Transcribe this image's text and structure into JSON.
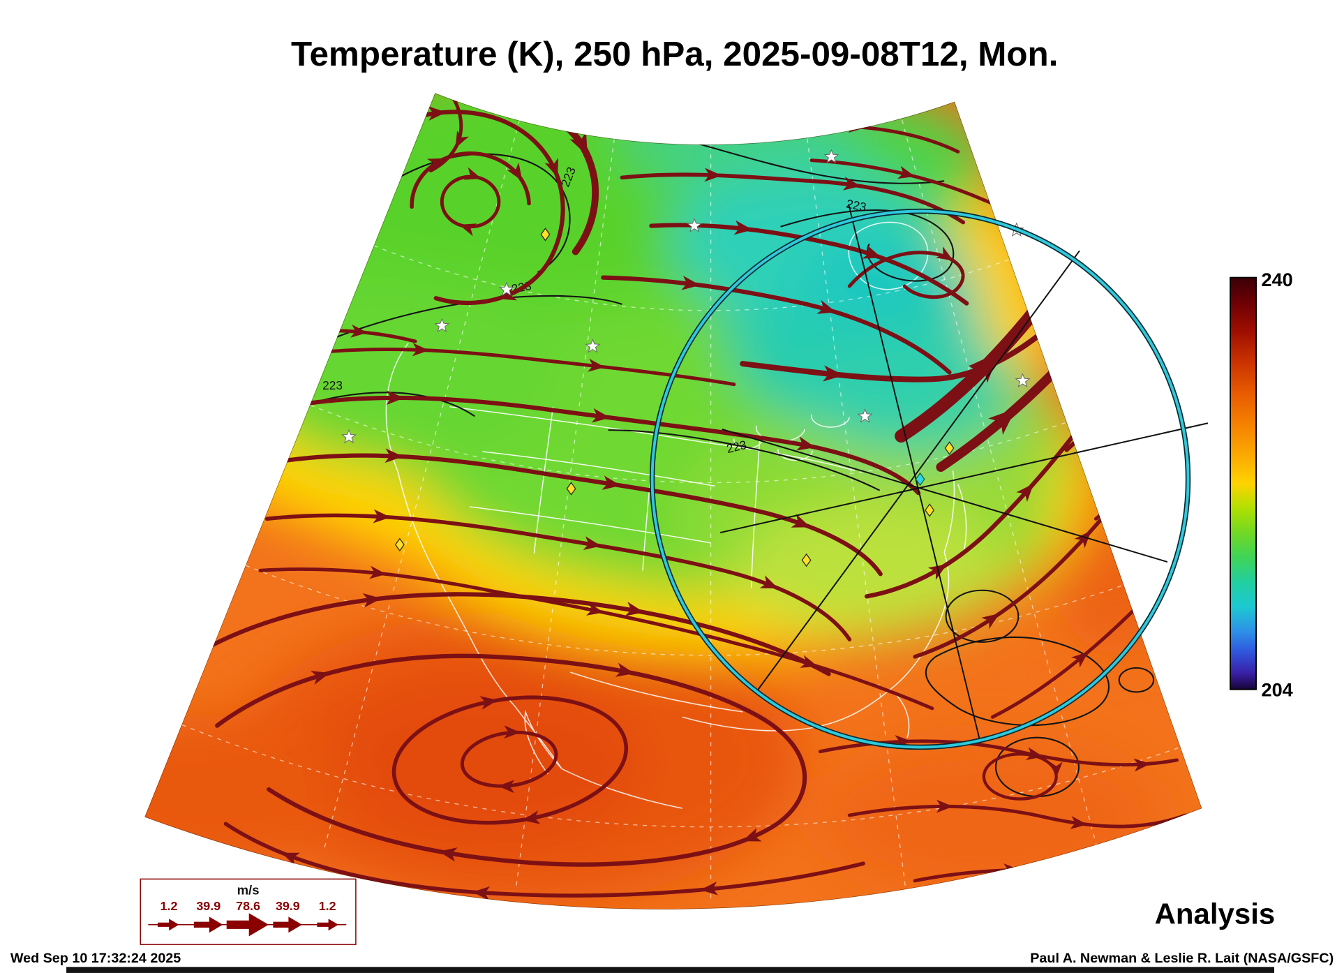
{
  "title": "Temperature (K), 250 hPa, 2025-09-08T12, Mon.",
  "product_label": "Analysis",
  "footer": {
    "timestamp": "Wed Sep 10 17:32:24 2025",
    "credit": "Paul A. Newman & Leslie R. Lait (NASA/GSFC)"
  },
  "colorbar": {
    "max_label": "240",
    "min_label": "204"
  },
  "contour_label": "223",
  "wind_legend": {
    "units": "m/s",
    "values": [
      "1.2",
      "39.9",
      "78.6",
      "39.9",
      "1.2"
    ]
  },
  "chart_data": {
    "type": "heatmap",
    "title": "Temperature (K), 250 hPa, 2025-09-08T12, Mon.",
    "variable": "Temperature",
    "units": "K",
    "pressure_level_hPa": 250,
    "valid_time": "2025-09-08T12",
    "weekday": "Mon.",
    "product": "Analysis",
    "colorbar_range": [
      204,
      240
    ],
    "labeled_contour_K": 223,
    "wind_speed_scale_ms": [
      1.2,
      39.9,
      78.6,
      39.9,
      1.2
    ],
    "projection": "conic fan-shaped sector over North America",
    "field_summary": {
      "cold_region": "teal/green ~210-224 K across the northern half (Canada, Great Lakes, northern US)",
      "warm_region": "orange/red ~228-238 K across the southern half (southwest US, Mexico, subtropics)",
      "transition_contour": "223 K black contour snakes along the green/orange boundary",
      "jet_streak": "thickest dark-red streamlines (fastest wind) angled SW-NE near the east side of the map",
      "circulations": "cyclonic spiral upper-left; broad clockwise anticyclonic spiral bottom-center"
    },
    "overlays": {
      "instrument_circle": "cyan circle with crossing black ground-track lines, centered right-of-middle",
      "station_markers": "yellow diamonds and white stars scattered over the map"
    }
  },
  "colors": {
    "streamline": "#7c1014",
    "legend_accent": "#8b0000",
    "overlay_circle": "#2fc9dd"
  }
}
